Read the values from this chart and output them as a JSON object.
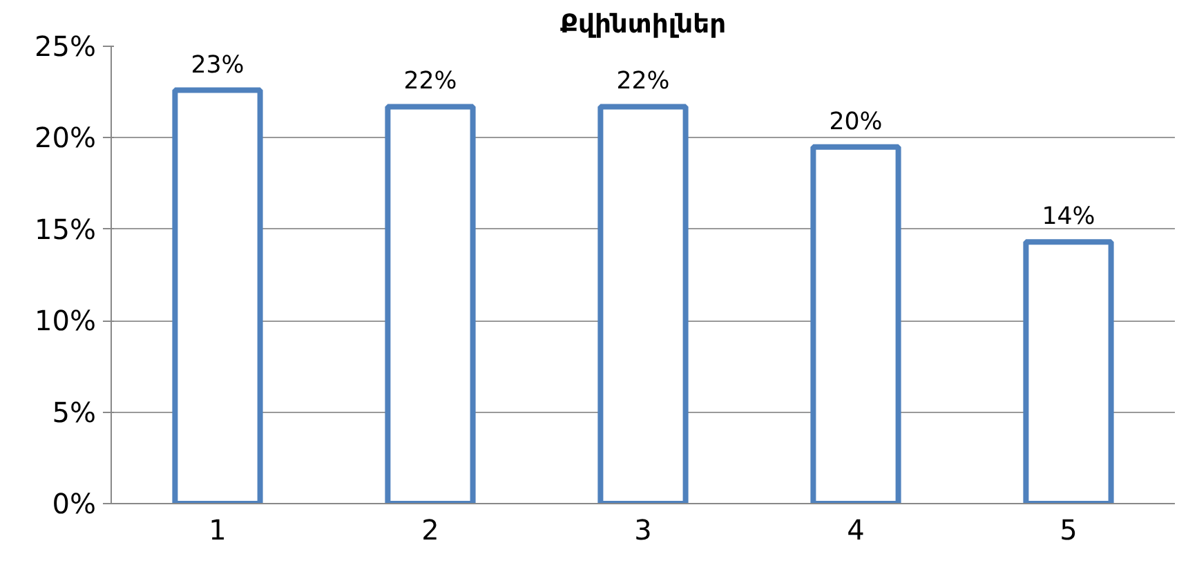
{
  "chart_data": {
    "type": "bar",
    "title": "Քվինտիլներ",
    "categories": [
      "1",
      "2",
      "3",
      "4",
      "5"
    ],
    "values": [
      22.6,
      21.7,
      21.7,
      19.5,
      14.3
    ],
    "value_labels": [
      "23%",
      "22%",
      "22%",
      "20%",
      "14%"
    ],
    "color": "#4f81bd",
    "ylim": [
      0,
      25
    ],
    "yticks": [
      {
        "value": 0,
        "label": "0%"
      },
      {
        "value": 5,
        "label": "5%"
      },
      {
        "value": 10,
        "label": "10%"
      },
      {
        "value": 15,
        "label": "15%"
      },
      {
        "value": 20,
        "label": "20%"
      },
      {
        "value": 25,
        "label": "25%"
      }
    ],
    "grid": "y"
  }
}
